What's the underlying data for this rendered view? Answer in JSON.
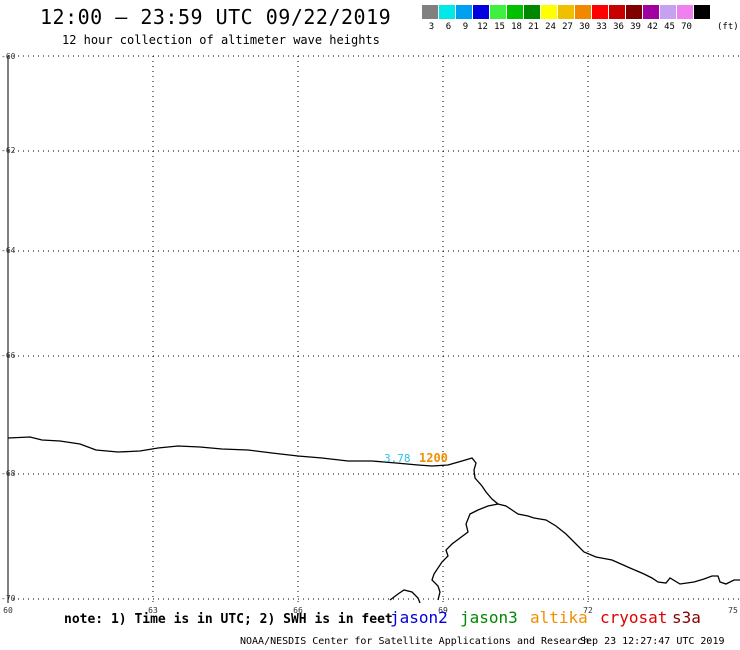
{
  "header": {
    "title": "12:00 – 23:59 UTC 09/22/2019",
    "subtitle": "12 hour collection of altimeter wave heights"
  },
  "legend": {
    "unit": "(ft)",
    "bins": [
      {
        "label": "3",
        "color": "#808080"
      },
      {
        "label": "6",
        "color": "#00e8e8"
      },
      {
        "label": "9",
        "color": "#00a0f0"
      },
      {
        "label": "12",
        "color": "#0000e0"
      },
      {
        "label": "15",
        "color": "#40f040"
      },
      {
        "label": "18",
        "color": "#00c000"
      },
      {
        "label": "21",
        "color": "#008800"
      },
      {
        "label": "24",
        "color": "#ffff00"
      },
      {
        "label": "27",
        "color": "#f0c000"
      },
      {
        "label": "30",
        "color": "#f08800"
      },
      {
        "label": "33",
        "color": "#ff0000"
      },
      {
        "label": "36",
        "color": "#c80000"
      },
      {
        "label": "39",
        "color": "#800000"
      },
      {
        "label": "42",
        "color": "#a000a0"
      },
      {
        "label": "45",
        "color": "#c8a0f0"
      },
      {
        "label": "70",
        "color": "#f080f0"
      },
      {
        "label": "",
        "color": "#000000"
      }
    ]
  },
  "axes": {
    "lat_labels": [
      "-60",
      "-62",
      "-64",
      "-66",
      "-68",
      "-70"
    ],
    "lon_labels": [
      "60",
      "63",
      "66",
      "69",
      "72",
      "75"
    ]
  },
  "observations": {
    "swh": "3.78",
    "swh_color": "#30c0e0",
    "time": "1200",
    "time_color": "#f09000"
  },
  "note": "note: 1) Time is in UTC; 2) SWH is in feet",
  "satellites": [
    {
      "name": "jason2",
      "color": "#0000dd"
    },
    {
      "name": "jason3",
      "color": "#008800"
    },
    {
      "name": "altika",
      "color": "#f09000"
    },
    {
      "name": "cryosat",
      "color": "#dd0000"
    },
    {
      "name": "s3a",
      "color": "#880000"
    }
  ],
  "footer": {
    "credit": "NOAA/NESDIS Center for Satellite Applications and Research",
    "timestamp": "Sep 23 12:27:47 UTC 2019"
  }
}
